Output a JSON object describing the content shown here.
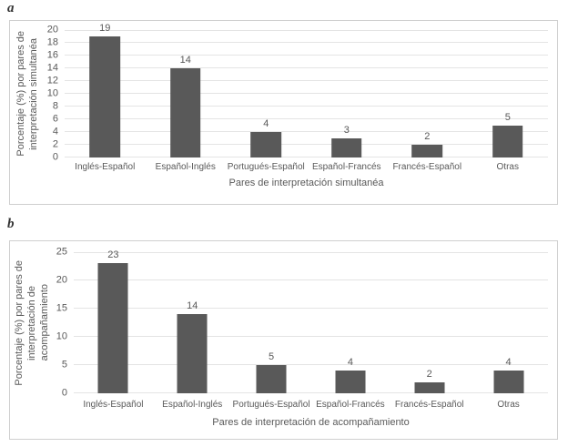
{
  "colors": {
    "bar": "#595959",
    "grid": "#e4e4e4",
    "border": "#cfcfcf",
    "text": "#595959",
    "background": "#ffffff"
  },
  "chart_data": [
    {
      "type": "bar",
      "panel_label": "a",
      "categories": [
        "Inglés-Español",
        "Español-Inglés",
        "Portugués-Español",
        "Español-Francés",
        "Francés-Español",
        "Otras"
      ],
      "values": [
        19,
        14,
        4,
        3,
        2,
        5
      ],
      "data_labels": [
        "19",
        "14",
        "4",
        "3",
        "2",
        "5"
      ],
      "xlabel": "Pares de interpretación simultanéa",
      "ylabel": "Porcentaje (%) por pares de interpretación simultanéa",
      "ylabel_lines": [
        "Porcentaje (%) por pares de",
        "interpretación simultanéa"
      ],
      "ylim": [
        0,
        20
      ],
      "yticks": [
        0,
        2,
        4,
        6,
        8,
        10,
        12,
        14,
        16,
        18,
        20
      ],
      "grid": true,
      "legend": "none",
      "bar_color": "#595959"
    },
    {
      "type": "bar",
      "panel_label": "b",
      "categories": [
        "Inglés-Español",
        "Español-Inglés",
        "Portugués-Español",
        "Español-Francés",
        "Francés-Español",
        "Otras"
      ],
      "values": [
        23,
        14,
        5,
        4,
        2,
        4
      ],
      "data_labels": [
        "23",
        "14",
        "5",
        "4",
        "2",
        "4"
      ],
      "xlabel": "Pares de interpretación de acompañamiento",
      "ylabel": "Porcentaje (%) por pares de interpretación de acompañamiento",
      "ylabel_lines": [
        "Porcentaje (%) por pares de",
        "interpretación de",
        "acompañamiento"
      ],
      "ylim": [
        0,
        25
      ],
      "yticks": [
        0,
        5,
        10,
        15,
        20,
        25
      ],
      "grid": true,
      "legend": "none",
      "bar_color": "#595959"
    }
  ]
}
